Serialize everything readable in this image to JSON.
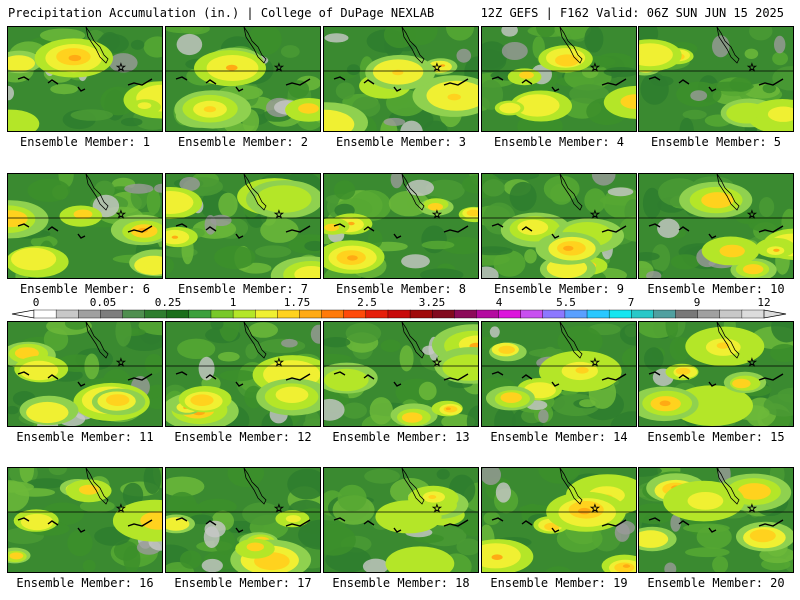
{
  "header": {
    "title_left": "Precipitation Accumulation (in.) | College of DuPage NEXLAB",
    "title_right": "12Z GEFS | F162 Valid: 06Z SUN JUN 15 2025"
  },
  "colorbar": {
    "labels": [
      "0",
      "0.05",
      "0.25",
      "1",
      "1.75",
      "2.5",
      "3.25",
      "4",
      "5.5",
      "7",
      "9",
      "12"
    ],
    "colors": [
      "#ffffff",
      "#c8c8c8",
      "#a0a0a0",
      "#7d7d7d",
      "#4f8f4f",
      "#2e7d2e",
      "#1a6e1a",
      "#3ca03c",
      "#78c828",
      "#b4e628",
      "#f0f032",
      "#ffd21e",
      "#ffaa14",
      "#ff7a0a",
      "#ff4a0a",
      "#e61e0a",
      "#c80a0a",
      "#a00a0a",
      "#820a1e",
      "#8c0a5a",
      "#b40aa0",
      "#dc14dc",
      "#c850f0",
      "#8c78ff",
      "#5aa0ff",
      "#28c8ff",
      "#14e6f0",
      "#28c8c8",
      "#50a0a0",
      "#787878",
      "#a0a0a0",
      "#c8c8c8",
      "#dcdcdc"
    ]
  },
  "members": [
    {
      "label": "Ensemble Member: 1"
    },
    {
      "label": "Ensemble Member: 2"
    },
    {
      "label": "Ensemble Member: 3"
    },
    {
      "label": "Ensemble Member: 4"
    },
    {
      "label": "Ensemble Member: 5"
    },
    {
      "label": "Ensemble Member: 6"
    },
    {
      "label": "Ensemble Member: 7"
    },
    {
      "label": "Ensemble Member: 8"
    },
    {
      "label": "Ensemble Member: 9"
    },
    {
      "label": "Ensemble Member: 10"
    },
    {
      "label": "Ensemble Member: 11"
    },
    {
      "label": "Ensemble Member: 12"
    },
    {
      "label": "Ensemble Member: 13"
    },
    {
      "label": "Ensemble Member: 14"
    },
    {
      "label": "Ensemble Member: 15"
    },
    {
      "label": "Ensemble Member: 16"
    },
    {
      "label": "Ensemble Member: 17"
    },
    {
      "label": "Ensemble Member: 18"
    },
    {
      "label": "Ensemble Member: 19"
    },
    {
      "label": "Ensemble Member: 20"
    }
  ]
}
